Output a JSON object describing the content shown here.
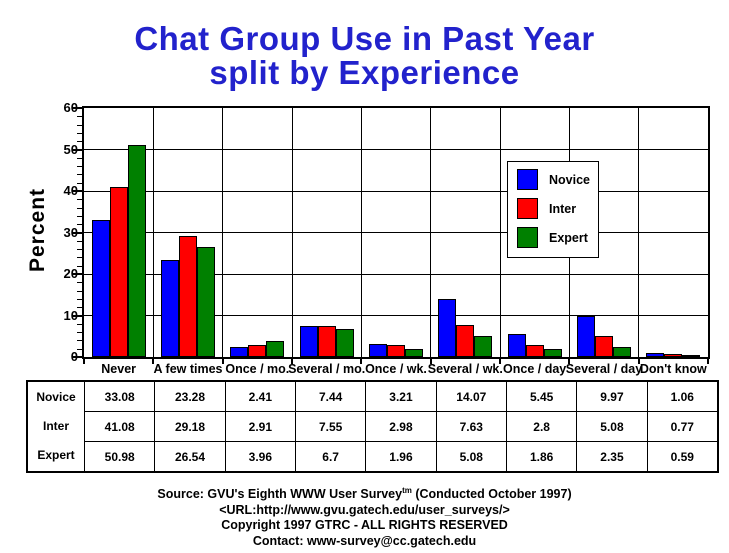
{
  "title": {
    "line1": "Chat Group Use in Past Year",
    "line2": "split by Experience"
  },
  "colors": {
    "background": "#FFFFFF",
    "title": "#2222CC",
    "axis": "#000000",
    "novice": "#0000FF",
    "inter": "#FF0000",
    "expert": "#008000"
  },
  "chart_data": {
    "type": "bar",
    "title": "Chat Group Use in Past Year split by Experience",
    "xlabel": "",
    "ylabel": "Percent",
    "ylim": [
      0,
      60
    ],
    "y_major_ticks": [
      0,
      10,
      20,
      30,
      40,
      50,
      60
    ],
    "y_minor_step": 2,
    "grid": true,
    "legend_position": "inside-upper-right",
    "categories": [
      "Never",
      "A few times",
      "Once / mo.",
      "Several / mo.",
      "Once / wk.",
      "Several / wk.",
      "Once / day",
      "Several / day",
      "Don't know"
    ],
    "series": [
      {
        "name": "Novice",
        "color": "#0000FF",
        "values": [
          33.08,
          23.28,
          2.41,
          7.44,
          3.21,
          14.07,
          5.45,
          9.97,
          1.06
        ]
      },
      {
        "name": "Inter",
        "color": "#FF0000",
        "values": [
          41.08,
          29.18,
          2.91,
          7.55,
          2.98,
          7.63,
          2.8,
          5.08,
          0.77
        ]
      },
      {
        "name": "Expert",
        "color": "#008000",
        "values": [
          50.98,
          26.54,
          3.96,
          6.7,
          1.96,
          5.08,
          1.86,
          2.35,
          0.59
        ]
      }
    ]
  },
  "table": {
    "row_headers": [
      "Novice",
      "Inter",
      "Expert"
    ],
    "rows": [
      [
        "33.08",
        "23.28",
        "2.41",
        "7.44",
        "3.21",
        "14.07",
        "5.45",
        "9.97",
        "1.06"
      ],
      [
        "41.08",
        "29.18",
        "2.91",
        "7.55",
        "2.98",
        "7.63",
        "2.8",
        "5.08",
        "0.77"
      ],
      [
        "50.98",
        "26.54",
        "3.96",
        "6.7",
        "1.96",
        "5.08",
        "1.86",
        "2.35",
        "0.59"
      ]
    ]
  },
  "footer": {
    "line1_pre": "Source: GVU's Eighth WWW User Survey",
    "line1_sup": "tm",
    "line1_post": " (Conducted October 1997)",
    "line2": "<URL:http://www.gvu.gatech.edu/user_surveys/>",
    "line3": "Copyright 1997 GTRC - ALL RIGHTS RESERVED",
    "line4": "Contact: www-survey@cc.gatech.edu"
  }
}
